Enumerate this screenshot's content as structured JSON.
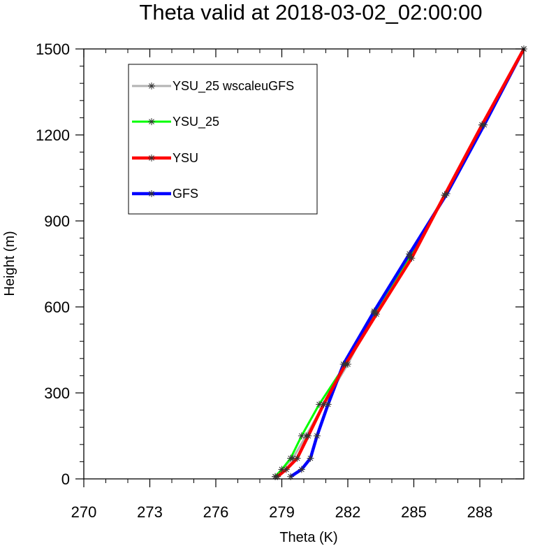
{
  "chart_data": {
    "type": "line",
    "title": "Theta valid at 2018-03-02_02:00:00",
    "xlabel": "Theta (K)",
    "ylabel": "Height (m)",
    "xlim": [
      270,
      290
    ],
    "ylim": [
      0,
      1500
    ],
    "xticks": [
      270,
      273,
      276,
      279,
      282,
      285,
      288
    ],
    "xtick_labels": [
      "270",
      "273",
      "276",
      "279",
      "282",
      "285",
      "288"
    ],
    "yticks": [
      0,
      300,
      600,
      900,
      1200,
      1500
    ],
    "ytick_labels": [
      "0",
      "300",
      "600",
      "900",
      "1200",
      "1500"
    ],
    "grid": false,
    "legend_position": "top-left",
    "series": [
      {
        "name": "YSU_25 wscaleuGFS",
        "color": "#b3b3b3",
        "marker": "asterisk",
        "x": [
          278.7,
          279.0,
          279.5,
          280.1,
          280.9,
          282.0,
          283.2,
          284.8,
          286.4,
          288.1,
          290.0
        ],
        "y": [
          8,
          33,
          72,
          150,
          260,
          400,
          580,
          775,
          990,
          1235,
          1500
        ]
      },
      {
        "name": "YSU_25",
        "color": "#00ff00",
        "marker": "asterisk",
        "x": [
          278.7,
          279.0,
          279.4,
          279.9,
          280.7,
          281.9,
          283.2,
          284.8,
          286.4,
          288.1,
          290.0
        ],
        "y": [
          8,
          33,
          72,
          150,
          260,
          400,
          580,
          775,
          990,
          1235,
          1500
        ]
      },
      {
        "name": "YSU",
        "color": "#ff0000",
        "marker": "asterisk",
        "x": [
          278.8,
          279.2,
          279.7,
          280.2,
          280.9,
          281.9,
          283.3,
          284.9,
          286.4,
          288.1,
          290.0
        ],
        "y": [
          8,
          33,
          72,
          150,
          260,
          400,
          575,
          770,
          990,
          1235,
          1500
        ]
      },
      {
        "name": "GFS",
        "color": "#0000ff",
        "marker": "asterisk",
        "x": [
          279.4,
          279.9,
          280.3,
          280.6,
          281.1,
          281.8,
          283.2,
          284.8,
          286.5,
          288.2,
          290.0
        ],
        "y": [
          8,
          33,
          72,
          150,
          260,
          400,
          585,
          785,
          995,
          1235,
          1500
        ]
      }
    ]
  },
  "colors": {
    "background": "#ffffff",
    "axis": "#000000"
  }
}
